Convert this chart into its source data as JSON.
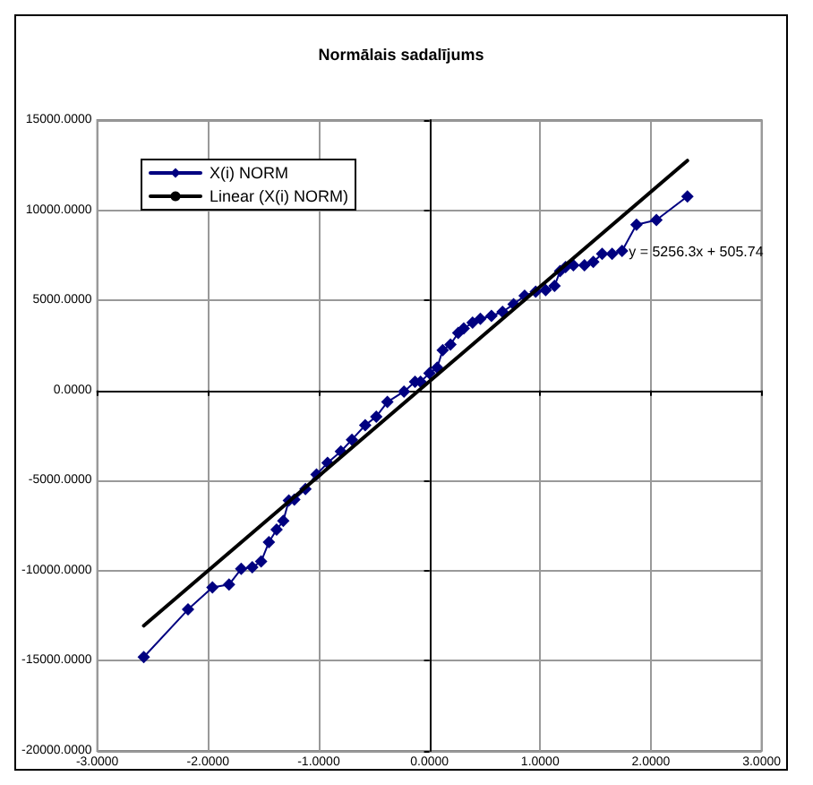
{
  "chart_data": {
    "type": "line",
    "title": "Normālais sadalījums",
    "series": [
      {
        "name": "X(i) NORM",
        "color": "#000080",
        "marker": "diamond",
        "x": [
          -2.58,
          -2.18,
          -1.96,
          -1.81,
          -1.7,
          -1.6,
          -1.52,
          -1.45,
          -1.38,
          -1.32,
          -1.27,
          -1.22,
          -1.12,
          -1.02,
          -0.92,
          -0.8,
          -0.7,
          -0.58,
          -0.48,
          -0.38,
          -0.23,
          -0.13,
          -0.08,
          0,
          0.07,
          0.12,
          0.19,
          0.26,
          0.31,
          0.39,
          0.46,
          0.56,
          0.66,
          0.76,
          0.86,
          0.96,
          1.05,
          1.13,
          1.18,
          1.23,
          1.3,
          1.4,
          1.48,
          1.56,
          1.65,
          1.74,
          1.87,
          2.05,
          2.33
        ],
        "values": [
          -14790,
          -12150,
          -10930,
          -10770,
          -9900,
          -9810,
          -9490,
          -8420,
          -7720,
          -7240,
          -6110,
          -6050,
          -5470,
          -4660,
          -4020,
          -3380,
          -2730,
          -1930,
          -1450,
          -640,
          -60,
          480,
          480,
          950,
          1270,
          2230,
          2550,
          3190,
          3440,
          3760,
          3980,
          4140,
          4360,
          4780,
          5260,
          5480,
          5570,
          5800,
          6620,
          6850,
          6940,
          6940,
          7130,
          7580,
          7580,
          7740,
          9200,
          9460,
          10760
        ]
      },
      {
        "name": "Linear (X(i) NORM)",
        "type": "line",
        "color": "#000000",
        "marker": "none",
        "x": [
          -2.58,
          2.33
        ],
        "values": [
          -13055,
          12753
        ]
      }
    ],
    "xlim": [
      -3,
      3
    ],
    "xticks": [
      {
        "value": -3,
        "label": "-3.0000"
      },
      {
        "value": -2,
        "label": "-2.0000"
      },
      {
        "value": -1,
        "label": "-1.0000"
      },
      {
        "value": 0,
        "label": "0.0000"
      },
      {
        "value": 1,
        "label": "1.0000"
      },
      {
        "value": 2,
        "label": "2.0000"
      },
      {
        "value": 3,
        "label": "3.0000"
      }
    ],
    "ylim": [
      -20000,
      15000
    ],
    "yticks": [
      {
        "value": -20000,
        "label": "-20000.0000"
      },
      {
        "value": -15000,
        "label": "-15000.0000"
      },
      {
        "value": -10000,
        "label": "-10000.0000"
      },
      {
        "value": -5000,
        "label": "-5000.0000"
      },
      {
        "value": 0,
        "label": "0.0000"
      },
      {
        "value": 5000,
        "label": "5000.0000"
      },
      {
        "value": 10000,
        "label": "10000.0000"
      },
      {
        "value": 15000,
        "label": "15000.0000"
      }
    ],
    "annotations": [
      {
        "text": "y = 5256.3x + 505.74",
        "x": 1.8,
        "y": 7700
      }
    ],
    "grid": true,
    "legend": "top left",
    "line_style": "solid"
  }
}
